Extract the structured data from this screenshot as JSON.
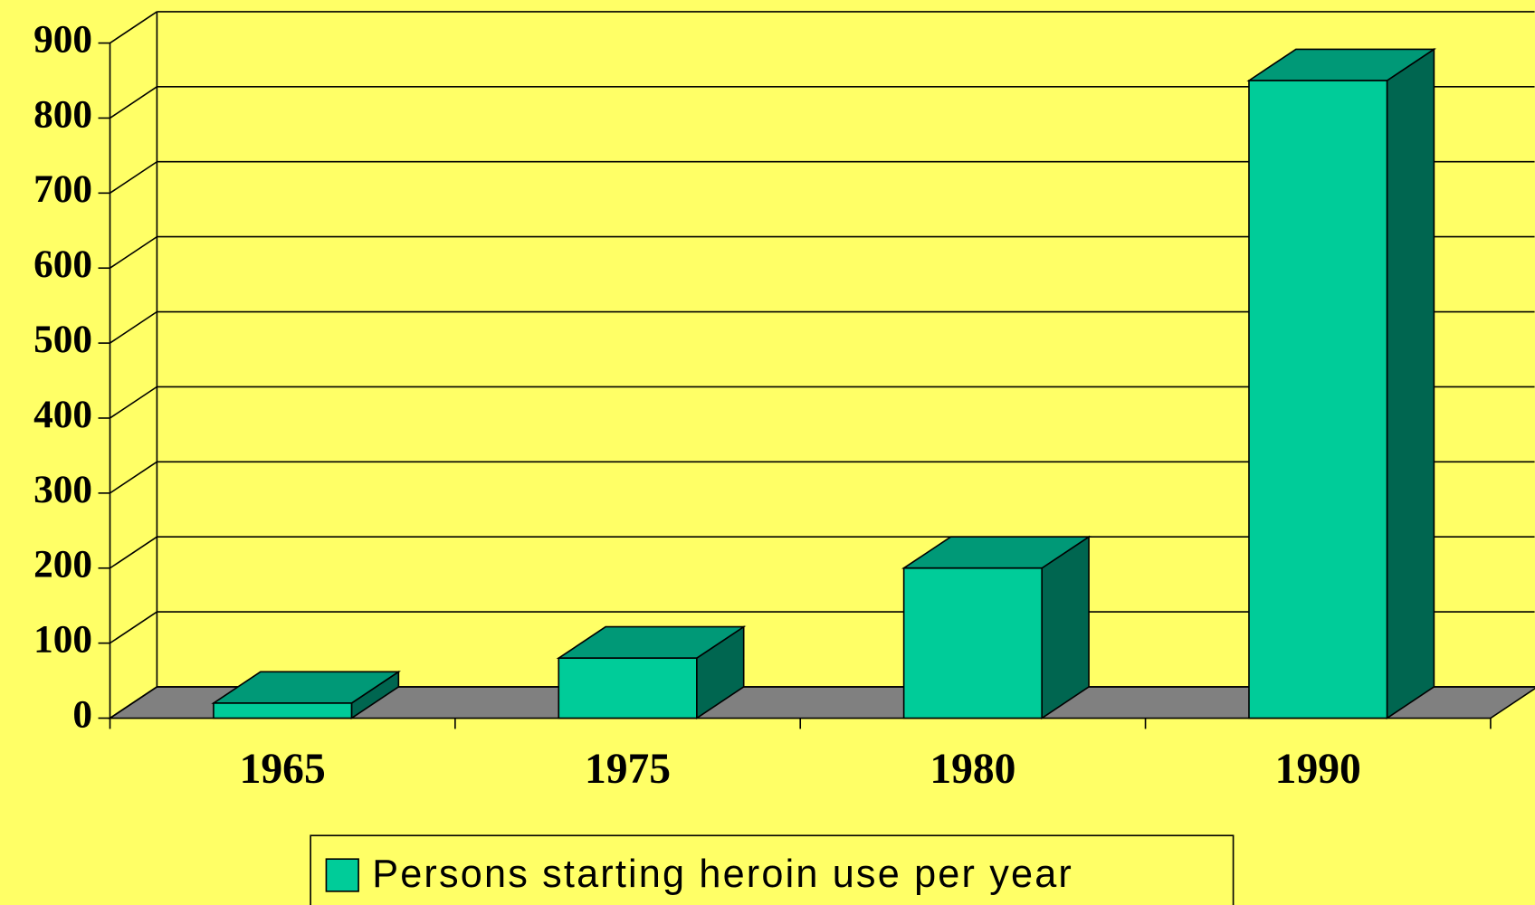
{
  "chart_data": {
    "type": "bar3d",
    "categories": [
      "1965",
      "1975",
      "1980",
      "1990"
    ],
    "series": [
      {
        "name": "Persons starting heroin use per year",
        "color": "#00cc99",
        "values": [
          20,
          80,
          200,
          850
        ]
      }
    ],
    "ylim": [
      0,
      900
    ],
    "yticks": [
      0,
      100,
      200,
      300,
      400,
      500,
      600,
      700,
      800,
      900
    ],
    "grid": true,
    "legend": "bottom"
  }
}
